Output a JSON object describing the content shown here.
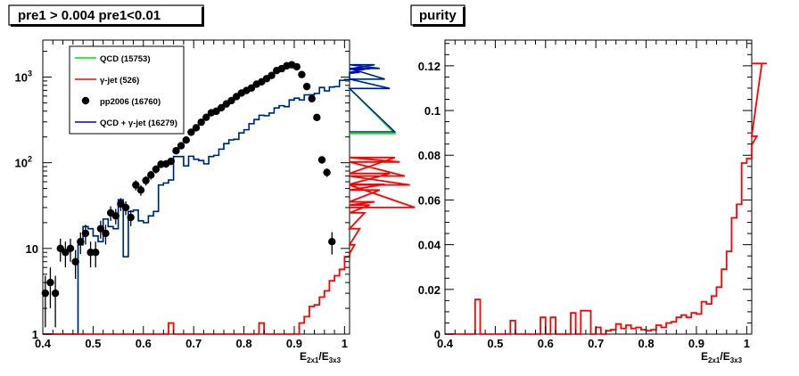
{
  "chart_data": [
    {
      "id": "left",
      "type": "histogram",
      "title": "pre1 > 0.004  pre1<0.01",
      "xlabel": {
        "main": "E",
        "sub1": "2x1",
        "mid": "/E",
        "sub2": "3x3"
      },
      "xlim": [
        0.4,
        1.01
      ],
      "ylim": [
        1,
        2700
      ],
      "yscale": "log",
      "xticks": [
        0.4,
        0.5,
        0.6,
        0.7,
        0.8,
        0.9,
        1
      ],
      "xtick_labels": [
        "0.4",
        "0.5",
        "0.6",
        "0.7",
        "0.8",
        "0.9",
        "1"
      ],
      "yticks": [
        {
          "value": 1,
          "label": "1"
        },
        {
          "value": 10,
          "label": "10"
        },
        {
          "value": 100,
          "label": "10",
          "sup": "2"
        },
        {
          "value": 1000,
          "label": "10",
          "sup": "3"
        }
      ],
      "bin_edges_start": 0.4,
      "bin_width": 0.01,
      "legend": {
        "position": "top-left",
        "entries": [
          {
            "label": "QCD (15753)",
            "color": "#00e000",
            "kind": "line"
          },
          {
            "label": "γ-jet (526)",
            "color": "#ff0000",
            "kind": "line"
          },
          {
            "label": "pp2006 (16760)",
            "color": "#000000",
            "kind": "marker"
          },
          {
            "label": "QCD + γ-jet (16279)",
            "color": "#0000cc",
            "kind": "line"
          }
        ]
      },
      "series": [
        {
          "name": "QCD (15753)",
          "kind": "step",
          "color": "#00e000",
          "values": [
            0,
            0,
            0,
            0,
            0,
            0,
            0,
            11,
            18,
            17,
            14,
            12,
            22,
            18,
            17,
            37,
            8,
            27,
            28,
            21,
            20,
            24,
            27,
            55,
            58,
            63,
            118,
            118,
            92,
            119,
            110,
            106,
            97,
            118,
            122,
            144,
            167,
            185,
            188,
            223,
            243,
            285,
            319,
            358,
            354,
            380,
            436,
            464,
            451,
            540,
            567,
            542,
            619,
            621,
            643,
            755,
            690,
            764,
            775,
            918,
            934,
            1133,
            1112,
            1136,
            1232,
            1246,
            1394,
            1260,
            946,
            736,
            220
          ]
        },
        {
          "name": "γ-jet (526)",
          "kind": "step",
          "color": "#ff0000",
          "values": [
            0,
            0,
            0,
            0,
            0,
            0,
            0,
            0,
            0,
            0,
            0,
            0,
            0,
            0,
            0,
            0,
            0,
            0,
            0,
            0,
            0,
            0,
            0,
            0,
            0,
            1.35,
            0,
            0,
            0,
            0,
            0,
            0,
            0,
            0,
            0,
            0,
            0,
            0,
            0,
            0,
            0,
            0,
            0,
            1.35,
            0,
            0,
            0,
            0,
            0,
            0,
            0,
            1.35,
            1.6,
            2.1,
            2.2,
            2.7,
            3.2,
            4.2,
            4.8,
            5.7,
            8.0,
            8.7,
            11,
            17,
            26,
            32,
            35,
            48,
            56,
            75,
            115,
            102,
            70,
            55,
            30
          ]
        },
        {
          "name": "QCD + γ-jet (16279)",
          "kind": "step",
          "color": "#0000cc",
          "values": [
            0,
            0,
            0,
            0,
            0,
            0,
            0,
            11,
            18,
            17,
            14,
            12,
            22,
            18,
            17,
            37,
            8,
            27,
            28,
            21,
            20,
            24,
            27,
            55,
            58,
            63,
            118,
            118,
            92,
            119,
            110,
            106,
            97,
            118,
            122,
            144,
            167,
            185,
            188,
            223,
            243,
            285,
            319,
            358,
            354,
            380,
            436,
            464,
            451,
            540,
            567,
            542,
            619,
            621,
            643,
            755,
            690,
            764,
            775,
            918,
            934,
            1133,
            1112,
            1136,
            1232,
            1246,
            1394,
            1260,
            946,
            736,
            230
          ]
        },
        {
          "name": "pp2006 (16760)",
          "kind": "points",
          "color": "#000000",
          "x": [
            0.405,
            0.415,
            0.425,
            0.435,
            0.445,
            0.455,
            0.465,
            0.475,
            0.485,
            0.495,
            0.505,
            0.515,
            0.525,
            0.535,
            0.545,
            0.555,
            0.565,
            0.575,
            0.585,
            0.595,
            0.605,
            0.615,
            0.625,
            0.635,
            0.645,
            0.655,
            0.665,
            0.675,
            0.685,
            0.695,
            0.705,
            0.715,
            0.725,
            0.735,
            0.745,
            0.755,
            0.765,
            0.775,
            0.785,
            0.795,
            0.805,
            0.815,
            0.825,
            0.835,
            0.845,
            0.855,
            0.865,
            0.875,
            0.885,
            0.895,
            0.905,
            0.915,
            0.925,
            0.935,
            0.945,
            0.955,
            0.965,
            0.975,
            0.985,
            0.995
          ],
          "y": [
            3,
            4,
            3,
            10,
            9,
            10,
            7,
            12,
            15,
            9,
            9,
            17,
            15,
            26,
            24,
            33,
            30,
            23,
            55,
            48,
            62,
            72,
            84,
            96,
            97,
            104,
            138,
            158,
            184,
            227,
            256,
            297,
            339,
            383,
            399,
            438,
            486,
            531,
            591,
            651,
            697,
            745,
            826,
            880,
            958,
            1044,
            1191,
            1252,
            1353,
            1393,
            1320,
            1070,
            775,
            559,
            338,
            108,
            77,
            12,
            0,
            0
          ],
          "yerr_low": [
            1.8,
            2,
            1.8,
            3,
            3,
            3,
            2.6,
            3.4,
            3.9,
            3,
            3,
            4,
            3.9,
            5,
            4.9,
            5.7,
            5.5,
            4.8,
            7.4,
            6.9,
            7.9,
            8.5,
            9.2,
            9.8,
            9.8,
            10.2,
            11.7,
            12.6,
            13.6,
            15.1,
            16,
            17.2,
            18.4,
            19.6,
            20,
            20.9,
            22,
            23,
            24.3,
            25.5,
            26.4,
            27.3,
            28.7,
            29.7,
            31,
            32.3,
            34.5,
            35.4,
            36.8,
            37.3,
            36.3,
            32.7,
            27.8,
            23.6,
            18.4,
            10.4,
            8.8,
            3.5,
            0,
            0
          ]
        }
      ]
    },
    {
      "id": "right",
      "type": "histogram",
      "title": "purity",
      "xlabel": {
        "main": "E",
        "sub1": "2x1",
        "mid": "/E",
        "sub2": "3x3"
      },
      "xlim": [
        0.4,
        1.01
      ],
      "ylim": [
        0,
        0.1315
      ],
      "yscale": "linear",
      "xticks": [
        0.4,
        0.5,
        0.6,
        0.7,
        0.8,
        0.9,
        1
      ],
      "xtick_labels": [
        "0.4",
        "0.5",
        "0.6",
        "0.7",
        "0.8",
        "0.9",
        "1"
      ],
      "yticks": [
        {
          "value": 0,
          "label": "0"
        },
        {
          "value": 0.02,
          "label": "0.02"
        },
        {
          "value": 0.04,
          "label": "0.04"
        },
        {
          "value": 0.06,
          "label": "0.06"
        },
        {
          "value": 0.08,
          "label": "0.08"
        },
        {
          "value": 0.1,
          "label": "0.1"
        },
        {
          "value": 0.12,
          "label": "0.12"
        }
      ],
      "bin_edges_start": 0.4,
      "bin_width": 0.01,
      "series": [
        {
          "name": "purity",
          "kind": "step",
          "color": "#ff0000",
          "values": [
            0,
            0,
            0,
            0,
            0,
            0,
            0.0155,
            0,
            0,
            0,
            0,
            0,
            0,
            0.006,
            0,
            0,
            0,
            0,
            0,
            0.0075,
            0,
            0.0075,
            0,
            0,
            0,
            0.0095,
            0,
            0.0105,
            0.0105,
            0,
            0.003,
            0,
            0.0015,
            0.002,
            0.0045,
            0.0025,
            0.004,
            0.0025,
            0.003,
            0.002,
            0.0015,
            0.002,
            0.004,
            0.003,
            0.005,
            0.0055,
            0.0075,
            0.0085,
            0.0075,
            0.0095,
            0.009,
            0.0145,
            0.0135,
            0.017,
            0.021,
            0.029,
            0.037,
            0.052,
            0.058,
            0.0765,
            0.0785,
            0.0845,
            0.0885,
            0.121,
            0.121
          ]
        }
      ]
    }
  ]
}
